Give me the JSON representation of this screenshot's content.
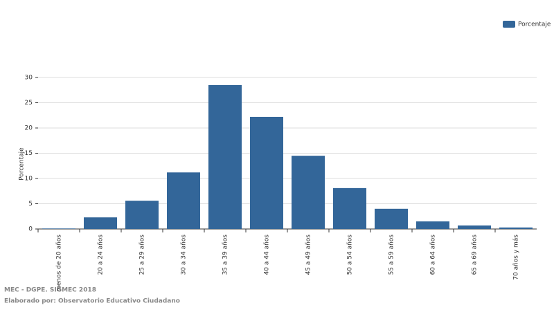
{
  "chart_data": {
    "type": "bar",
    "y_label": "Porcentaje",
    "categories": [
      "menos de 20 años",
      "20 a 24 años",
      "25 a 29 años",
      "30 a 34 años",
      "35 a 39 años",
      "40 a 44 años",
      "45 a 49 años",
      "50 a 54 años",
      "55 a 59 años",
      "60 a 64 años",
      "65 a 69 años",
      "70 años y más"
    ],
    "series": [
      {
        "name": "Porcentaje",
        "color": "#336699",
        "values": [
          0.1,
          2.3,
          5.6,
          11.2,
          28.5,
          22.2,
          14.5,
          8.1,
          4.0,
          1.5,
          0.7,
          0.3
        ]
      }
    ],
    "ylim": [
      0,
      30
    ],
    "yticks": [
      0,
      5,
      10,
      15,
      20,
      25,
      30
    ],
    "grid": true,
    "legend": "top-right"
  },
  "footer": {
    "source": "MEC - DGPE. SIGMEC 2018",
    "credit": "Elaborado por: Observatorio Educativo Ciudadano"
  }
}
